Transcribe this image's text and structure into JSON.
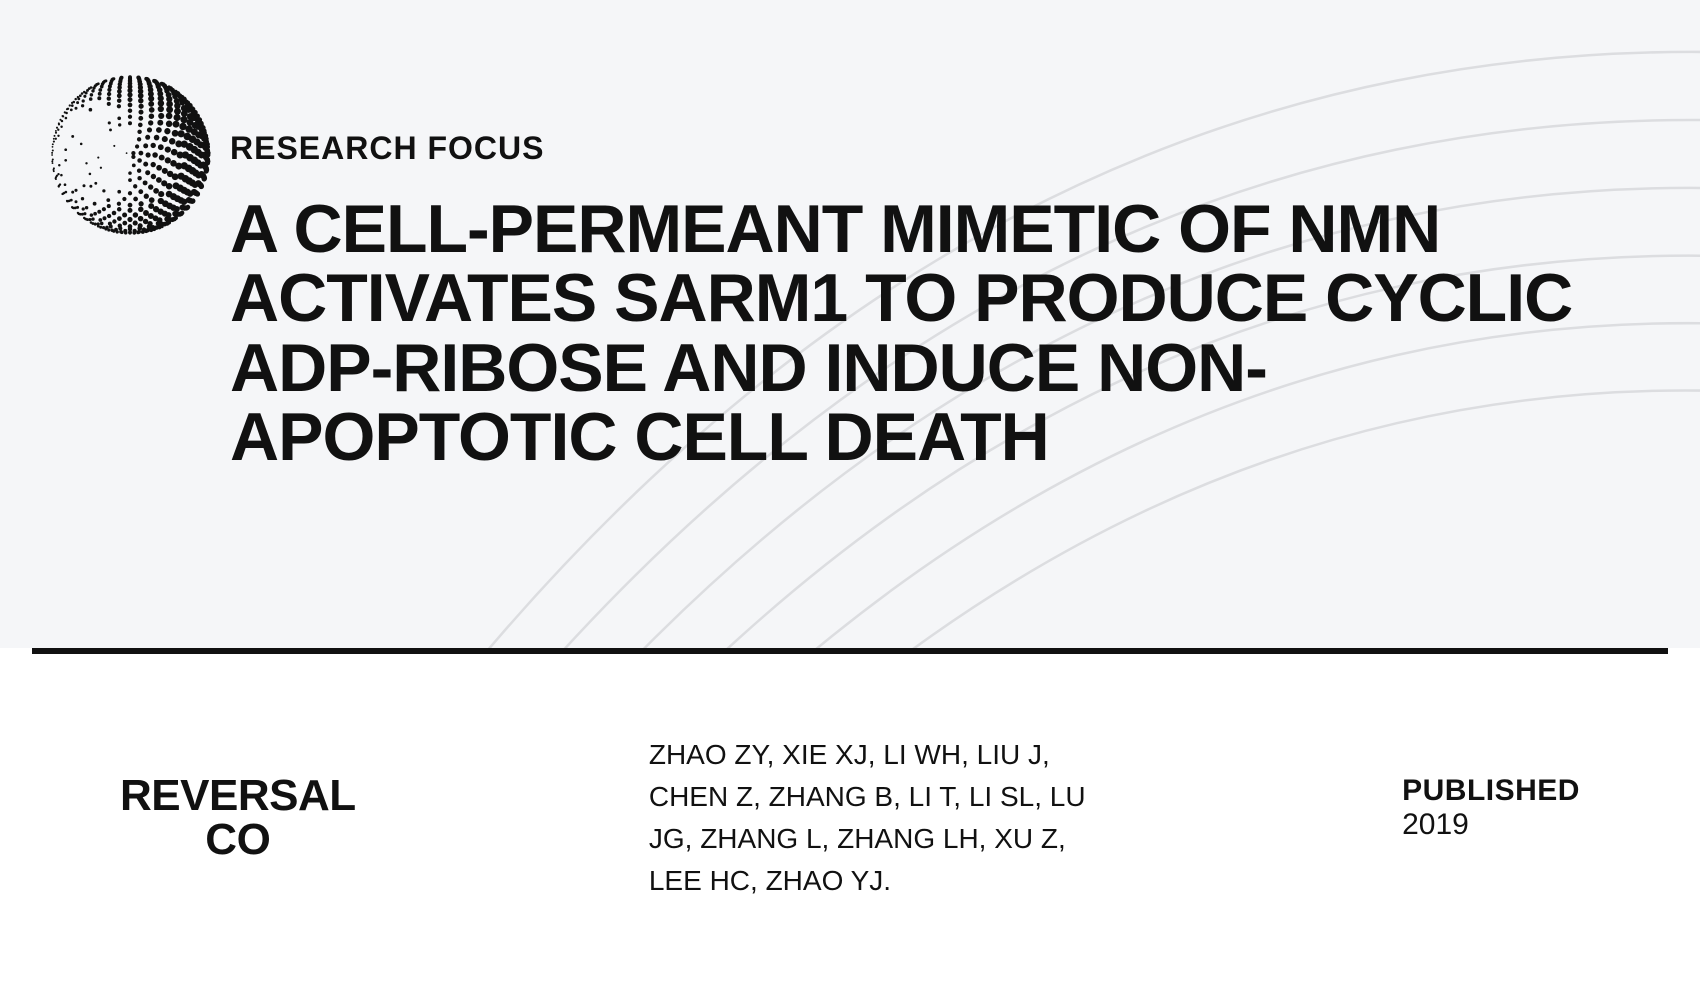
{
  "header": {
    "eyebrow": "RESEARCH FOCUS",
    "title": "A CELL-PERMEANT MIMETIC OF NMN ACTIVATES SARM1 TO PRODUCE CYCLIC ADP-RIBOSE AND INDUCE NON-APOPTOTIC CELL DEATH"
  },
  "footer": {
    "brand_line1": "REVERSAL",
    "brand_line2": "CO",
    "authors": "ZHAO ZY, XIE XJ, LI WH, LIU J, CHEN Z, ZHANG B, LI T, LI SL, LU JG, ZHANG L, ZHANG LH, XU Z, LEE HC, ZHAO YJ.",
    "published_label": "PUBLISHED",
    "published_year": "2019"
  },
  "style": {
    "top_bg": "#f5f6f8",
    "bottom_bg": "#ffffff",
    "text_color": "#111111",
    "arc_stroke": "#dcdde0",
    "divider_color": "#111111",
    "title_fontsize": 68,
    "eyebrow_fontsize": 32,
    "authors_fontsize": 28,
    "brand_fontsize": 44,
    "published_fontsize": 30
  }
}
